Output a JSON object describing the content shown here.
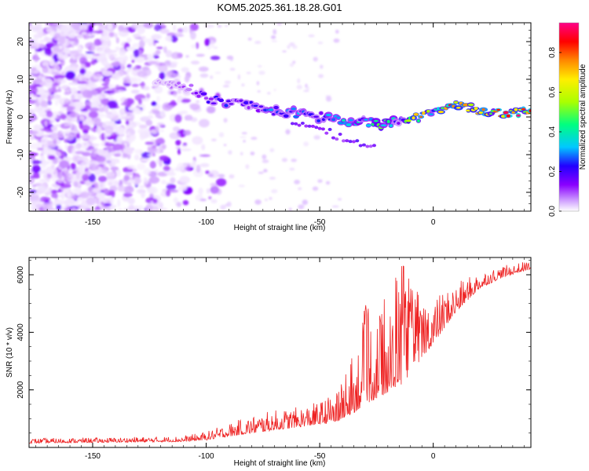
{
  "title": "KOM5.2025.361.18.28.G01",
  "chart_data": [
    {
      "type": "heatmap",
      "name": "spectrogram",
      "xlabel": "Height of straight line (km)",
      "ylabel": "Frequency (Hz)",
      "xlim": [
        -178,
        43
      ],
      "ylim": [
        -25,
        25
      ],
      "xticks": [
        -150,
        -100,
        -50,
        0
      ],
      "xtick_labels": [
        "-150",
        "-100",
        "-50",
        "0"
      ],
      "yticks": [
        -20,
        -10,
        0,
        10,
        20
      ],
      "ytick_labels": [
        "-20",
        "-10",
        "0",
        "10",
        "20"
      ],
      "colorbar": {
        "label": "Normalized spectral amplitude",
        "range": [
          0,
          0.95
        ],
        "ticks": [
          0,
          0.2,
          0.4,
          0.6,
          0.8
        ],
        "tick_labels": [
          "0.0",
          "0.2",
          "0.4",
          "0.6",
          "0.8"
        ],
        "colors": [
          "#ffffff",
          "#cc99ff",
          "#8a00ff",
          "#2200ff",
          "#00c8ff",
          "#00ff80",
          "#aaff00",
          "#ffee00",
          "#ff8800",
          "#ff0000",
          "#ff0088"
        ]
      },
      "ridge": {
        "x": [
          -118,
          -110,
          -100,
          -90,
          -80,
          -70,
          -60,
          -50,
          -40,
          -30,
          -22,
          -15,
          -10,
          -5,
          0,
          5,
          10,
          20,
          30,
          43
        ],
        "y": [
          9,
          8.5,
          5,
          3.5,
          3,
          1.5,
          1,
          0,
          -1,
          -1.5,
          -2,
          -1,
          0,
          0,
          1,
          3,
          3,
          2,
          1,
          1
        ],
        "amplitude": [
          0.1,
          0.15,
          0.25,
          0.3,
          0.25,
          0.4,
          0.35,
          0.3,
          0.55,
          0.35,
          0.6,
          0.3,
          0.6,
          0.85,
          0.3,
          0.8,
          0.85,
          0.7,
          0.9,
          0.85
        ]
      }
    },
    {
      "type": "line",
      "name": "snr",
      "xlabel": "Height of straight line (km)",
      "ylabel": "SNR (10 * v/v)",
      "xlim": [
        -178,
        43
      ],
      "ylim": [
        0,
        6600
      ],
      "xticks": [
        -150,
        -100,
        -50,
        0
      ],
      "xtick_labels": [
        "-150",
        "-100",
        "-50",
        "0"
      ],
      "yticks": [
        2000,
        4000,
        6000
      ],
      "ytick_labels": [
        "2000",
        "4000",
        "6000"
      ],
      "color": "#ee2222",
      "envelope": {
        "x": [
          -178,
          -140,
          -110,
          -100,
          -90,
          -80,
          -70,
          -60,
          -50,
          -42,
          -35,
          -30,
          -25,
          -20,
          -15,
          -10,
          -5,
          0,
          10,
          20,
          30,
          43
        ],
        "base": [
          150,
          180,
          200,
          260,
          380,
          500,
          600,
          700,
          800,
          900,
          1200,
          1500,
          1700,
          1900,
          2100,
          2500,
          3100,
          3600,
          4700,
          5500,
          5900,
          6200
        ],
        "peak": [
          320,
          350,
          400,
          550,
          850,
          1100,
          1300,
          1400,
          1600,
          2000,
          3100,
          4800,
          4700,
          5000,
          6300,
          5600,
          5400,
          5200,
          5700,
          6100,
          6300,
          6500
        ]
      }
    }
  ]
}
